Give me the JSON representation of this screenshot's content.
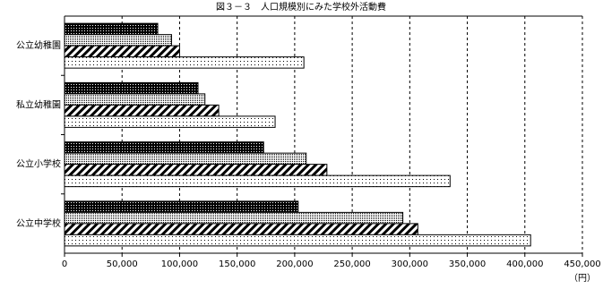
{
  "chart_data": {
    "type": "hbar",
    "title": "図３－３　人口規模別にみた学校外活動費",
    "x_label": "（円）",
    "categories": [
      "公立幼稚園",
      "私立幼稚園",
      "公立小学校",
      "公立中学校"
    ],
    "series": [
      {
        "color": "#000000",
        "pattern": "dense-dots",
        "values": [
          81000,
          116000,
          173000,
          203000
        ]
      },
      {
        "color": "#000000",
        "pattern": "fine-dots",
        "values": [
          93000,
          122000,
          210000,
          294000
        ]
      },
      {
        "color": "#000000",
        "pattern": "hatch",
        "values": [
          100000,
          134000,
          228000,
          307000
        ]
      },
      {
        "color": "#000000",
        "pattern": "sparse-dots",
        "values": [
          208000,
          183000,
          335000,
          405000
        ]
      }
    ],
    "xlim": [
      0,
      450000
    ],
    "xticks": [
      0,
      {
        "value": 50000,
        "label": "50,000"
      },
      {
        "value": 100000,
        "label": "100,000"
      },
      {
        "value": 150000,
        "label": "150,000"
      },
      {
        "value": 200000,
        "label": "200,000"
      },
      {
        "value": 250000,
        "label": "250,000"
      },
      {
        "value": 300000,
        "label": "300,000"
      },
      {
        "value": 350000,
        "label": "350,000"
      },
      {
        "value": 400000,
        "label": "400,000"
      },
      {
        "value": 450000,
        "label": "450,000"
      }
    ],
    "grid": true
  }
}
